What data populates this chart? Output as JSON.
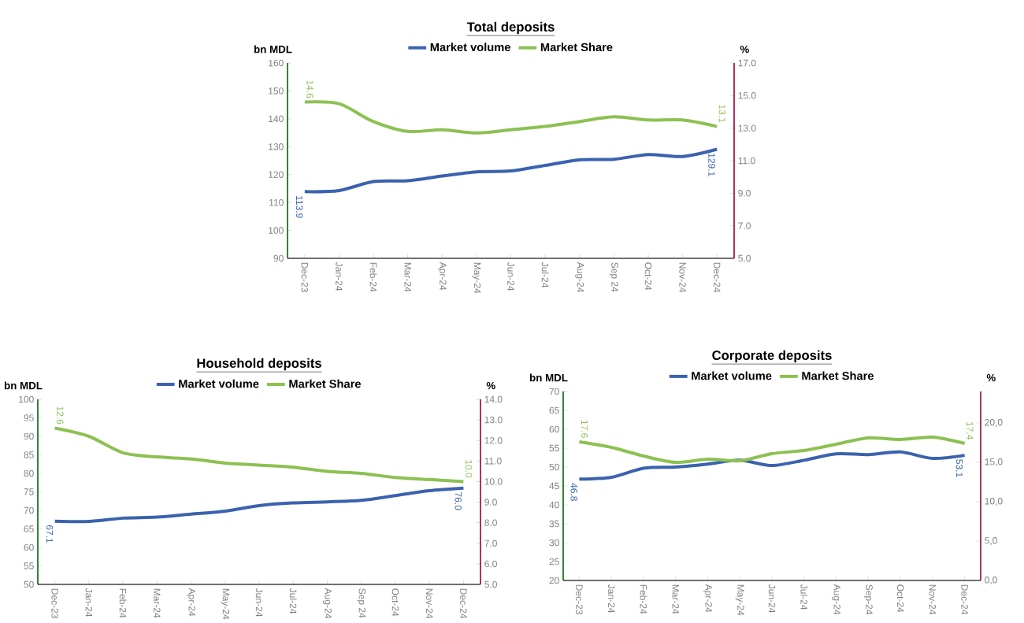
{
  "chart_data": [
    {
      "type": "line",
      "title": "Total deposits",
      "ylabel": "bn MDL",
      "y2label": "%",
      "legend": "top",
      "categories": [
        "Dec-23",
        "Jan-24",
        "Feb-24",
        "Mar-24",
        "Apr-24",
        "May-24",
        "Jun-24",
        "Jul-24",
        "Aug-24",
        "Sep 24",
        "Oct-24",
        "Nov-24",
        "Dec-24"
      ],
      "series": [
        {
          "name": "Market volume",
          "color": "#3a62ae",
          "values": [
            113.9,
            114.3,
            117.5,
            117.8,
            119.5,
            121.0,
            121.3,
            123.3,
            125.3,
            125.5,
            127.2,
            126.5,
            129.1
          ],
          "value_labels": [
            "113.9",
            null,
            null,
            null,
            null,
            null,
            null,
            null,
            null,
            null,
            null,
            null,
            "129.1"
          ]
        },
        {
          "name": "Market Share",
          "color": "#8cc152",
          "axis": "y2",
          "values": [
            14.6,
            14.5,
            13.4,
            12.8,
            12.9,
            12.7,
            12.9,
            13.1,
            13.4,
            13.7,
            13.5,
            13.5,
            13.1
          ],
          "value_labels": [
            "14.6",
            null,
            null,
            null,
            null,
            null,
            null,
            null,
            null,
            null,
            null,
            null,
            "13.1"
          ]
        }
      ],
      "ylim": [
        90,
        160
      ],
      "yticks": [
        90,
        100,
        110,
        120,
        130,
        140,
        150,
        160
      ],
      "y2lim": [
        5,
        17
      ],
      "y2ticks": [
        {
          "value": 5,
          "label": "5.0"
        },
        {
          "value": 7,
          "label": "7.0"
        },
        {
          "value": 9,
          "label": "9.0"
        },
        {
          "value": 11,
          "label": "11.0"
        },
        {
          "value": 13,
          "label": "13.0"
        },
        {
          "value": 15,
          "label": "15.0"
        },
        {
          "value": 17,
          "label": "17.0"
        }
      ]
    },
    {
      "type": "line",
      "title": "Household deposits",
      "ylabel": "bn MDL",
      "y2label": "%",
      "legend": "top",
      "categories": [
        "Dec-23",
        "Jan-24",
        "Feb-24",
        "Mar-24",
        "Apr-24",
        "May-24",
        "Jun-24",
        "Jul-24",
        "Aug-24",
        "Sep 24",
        "Oct-24",
        "Nov-24",
        "Dec-24"
      ],
      "series": [
        {
          "name": "Market volume",
          "color": "#3a62ae",
          "values": [
            67.1,
            67.0,
            67.9,
            68.2,
            69.0,
            69.8,
            71.3,
            72.0,
            72.3,
            72.7,
            74.0,
            75.3,
            76.0
          ],
          "value_labels": [
            "67.1",
            null,
            null,
            null,
            null,
            null,
            null,
            null,
            null,
            null,
            null,
            null,
            "76.0"
          ]
        },
        {
          "name": "Market Share",
          "color": "#8cc152",
          "axis": "y2",
          "values": [
            12.6,
            12.2,
            11.4,
            11.2,
            11.1,
            10.9,
            10.8,
            10.7,
            10.5,
            10.4,
            10.2,
            10.1,
            10.0
          ],
          "value_labels": [
            "12.6",
            null,
            null,
            null,
            null,
            null,
            null,
            null,
            null,
            null,
            null,
            null,
            "10.0"
          ]
        }
      ],
      "ylim": [
        50,
        100
      ],
      "yticks": [
        50,
        55,
        60,
        65,
        70,
        75,
        80,
        85,
        90,
        95,
        100
      ],
      "y2lim": [
        5,
        14
      ],
      "y2ticks": [
        {
          "value": 5,
          "label": "5.0"
        },
        {
          "value": 6,
          "label": "6.0"
        },
        {
          "value": 7,
          "label": "7.0"
        },
        {
          "value": 8,
          "label": "8.0"
        },
        {
          "value": 9,
          "label": "9.0"
        },
        {
          "value": 10,
          "label": "10.0"
        },
        {
          "value": 11,
          "label": "11.0"
        },
        {
          "value": 12,
          "label": "12.0"
        },
        {
          "value": 13,
          "label": "13.0"
        },
        {
          "value": 14,
          "label": "14.0"
        }
      ]
    },
    {
      "type": "line",
      "title": "Corporate deposits",
      "ylabel": "bn MDL",
      "y2label": "%",
      "legend": "top",
      "categories": [
        "Dec-23",
        "Jan-24",
        "Feb-24",
        "Mar-24",
        "Apr-24",
        "May-24",
        "Jun-24",
        "Jul-24",
        "Aug-24",
        "Sep-24",
        "Oct-24",
        "Nov-24",
        "Dec-24"
      ],
      "series": [
        {
          "name": "Market volume",
          "color": "#3a62ae",
          "values": [
            46.8,
            47.3,
            49.7,
            50.0,
            50.8,
            51.8,
            50.4,
            51.8,
            53.5,
            53.3,
            54.0,
            52.3,
            53.1
          ],
          "value_labels": [
            "46.8",
            null,
            null,
            null,
            null,
            null,
            null,
            null,
            null,
            null,
            null,
            null,
            "53.1"
          ]
        },
        {
          "name": "Market Share",
          "color": "#8cc152",
          "axis": "y2",
          "values": [
            17.6,
            16.9,
            15.8,
            15.0,
            15.4,
            15.2,
            16.1,
            16.5,
            17.3,
            18.1,
            17.9,
            18.2,
            17.4
          ],
          "value_labels": [
            "17.6",
            null,
            null,
            null,
            null,
            null,
            null,
            null,
            null,
            null,
            null,
            null,
            "17.4"
          ]
        }
      ],
      "ylim": [
        20,
        70
      ],
      "yticks": [
        20,
        25,
        30,
        35,
        40,
        45,
        50,
        55,
        60,
        65,
        70
      ],
      "y2lim": [
        0,
        24
      ],
      "y2ticks": [
        {
          "value": 0,
          "label": "0,0"
        },
        {
          "value": 5,
          "label": "5,0"
        },
        {
          "value": 10,
          "label": "10,0"
        },
        {
          "value": 15,
          "label": "15,0"
        },
        {
          "value": 20,
          "label": "20,0"
        }
      ]
    }
  ]
}
